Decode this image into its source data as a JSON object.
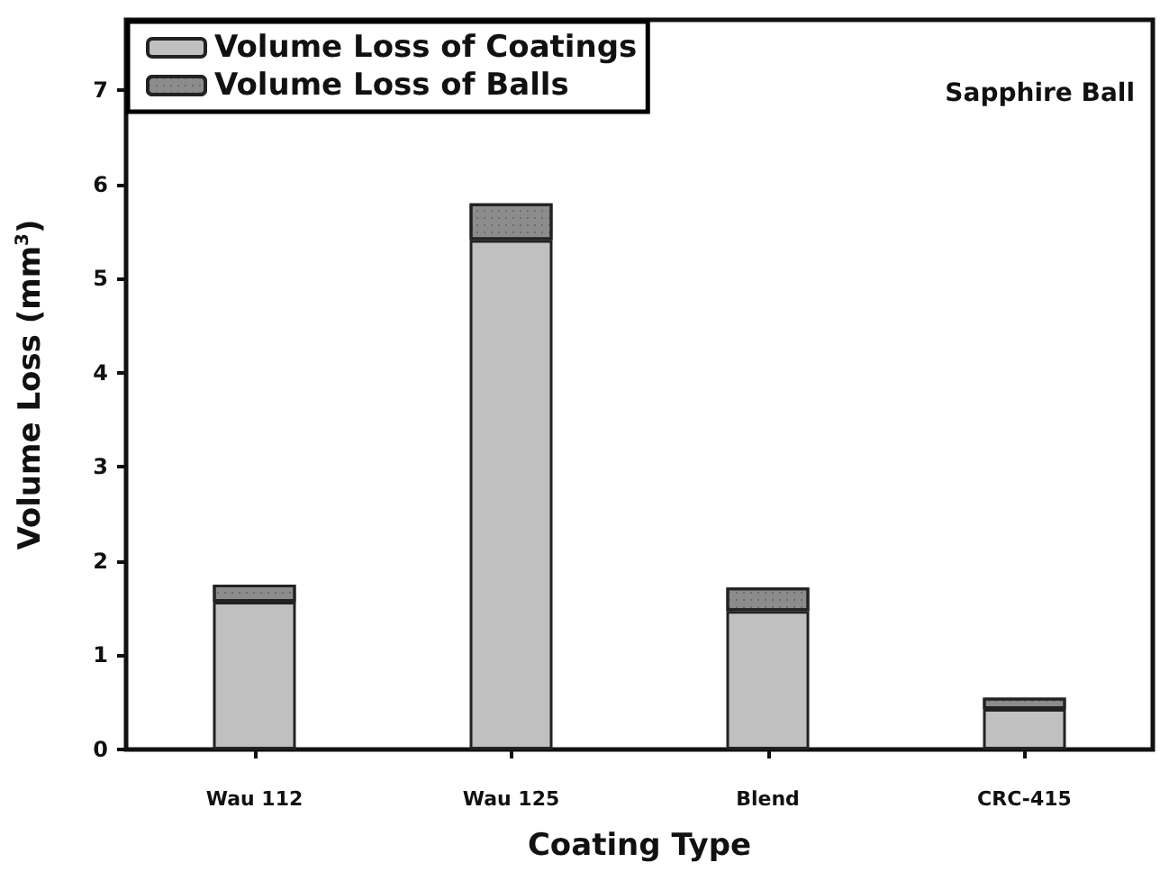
{
  "chart_data": {
    "type": "bar",
    "stacked": true,
    "xlabel": "Coating Type",
    "ylabel": "Volume Loss (mm$^{3}$)",
    "categories": [
      "Wau 112",
      "Wau 125",
      "Blend",
      "CRC-415"
    ],
    "series": [
      {
        "name": "Volume Loss of Coatings",
        "color": "#c0c0c0",
        "values": [
          1.57,
          5.41,
          1.47,
          0.43
        ]
      },
      {
        "name": "Volume Loss of Balls",
        "color": "#8c8c8c",
        "values": [
          0.18,
          0.39,
          0.25,
          0.12
        ]
      }
    ],
    "ylim": [
      0,
      7.75
    ],
    "yticks": [
      0,
      1,
      2,
      3,
      4,
      5,
      6,
      7
    ],
    "grid": false,
    "legend": "top left",
    "annotations": [
      "Sapphire Ball"
    ]
  }
}
